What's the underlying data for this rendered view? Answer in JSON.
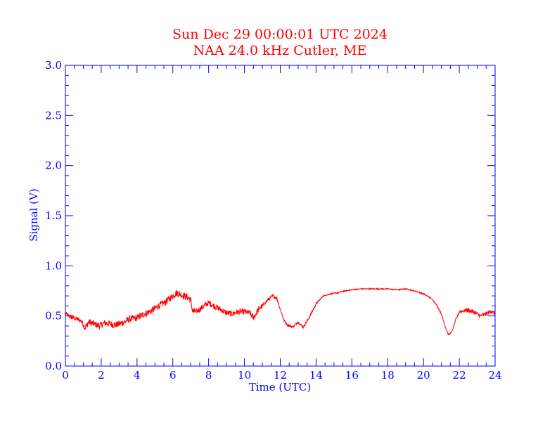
{
  "colors": {
    "axis": "#0000ff",
    "title": "#ff0000",
    "series": "#ff0000",
    "background": "#ffffff"
  },
  "chart_data": {
    "type": "line",
    "title": "Sun Dec 29 00:00:01 UTC 2024",
    "subtitle": "NAA 24.0 kHz Cutler, ME",
    "xlabel": "Time (UTC)",
    "ylabel": "Signal (V)",
    "xlim": [
      0,
      24
    ],
    "ylim": [
      0,
      3.0
    ],
    "xticks": [
      "0",
      "2",
      "4",
      "6",
      "8",
      "10",
      "12",
      "14",
      "16",
      "18",
      "20",
      "22",
      "24"
    ],
    "yticks": [
      "0.0",
      "0.5",
      "1.0",
      "1.5",
      "2.0",
      "2.5",
      "3.0"
    ],
    "grid": false,
    "series": [
      {
        "name": "NAA 24.0 kHz",
        "x": [
          0,
          0.3,
          0.6,
          0.9,
          1.1,
          1.3,
          1.6,
          1.9,
          2.2,
          2.5,
          2.8,
          3.0,
          3.3,
          3.6,
          4.0,
          4.4,
          4.8,
          5.2,
          5.6,
          6.0,
          6.2,
          6.5,
          6.8,
          7.0,
          7.1,
          7.3,
          7.6,
          7.8,
          8.0,
          8.3,
          8.6,
          9.0,
          9.3,
          9.6,
          10.0,
          10.3,
          10.5,
          10.8,
          11.0,
          11.3,
          11.6,
          11.8,
          12.0,
          12.2,
          12.4,
          12.7,
          13.0,
          13.1,
          13.3,
          13.6,
          14.0,
          14.4,
          14.8,
          15.2,
          15.6,
          16.0,
          16.5,
          17.0,
          17.5,
          18.0,
          18.5,
          19.0,
          19.5,
          20.0,
          20.4,
          20.7,
          21.0,
          21.2,
          21.4,
          21.6,
          21.8,
          22.0,
          22.4,
          22.8,
          23.2,
          23.5,
          23.8,
          24.0
        ],
        "values": [
          0.52,
          0.49,
          0.47,
          0.45,
          0.38,
          0.44,
          0.42,
          0.4,
          0.43,
          0.42,
          0.41,
          0.42,
          0.44,
          0.47,
          0.48,
          0.52,
          0.55,
          0.6,
          0.64,
          0.7,
          0.73,
          0.71,
          0.69,
          0.66,
          0.55,
          0.54,
          0.58,
          0.61,
          0.63,
          0.6,
          0.57,
          0.53,
          0.52,
          0.54,
          0.54,
          0.53,
          0.48,
          0.57,
          0.6,
          0.66,
          0.7,
          0.68,
          0.57,
          0.46,
          0.41,
          0.39,
          0.44,
          0.42,
          0.39,
          0.48,
          0.62,
          0.7,
          0.72,
          0.73,
          0.75,
          0.76,
          0.77,
          0.77,
          0.77,
          0.77,
          0.76,
          0.77,
          0.75,
          0.72,
          0.68,
          0.62,
          0.52,
          0.4,
          0.31,
          0.35,
          0.46,
          0.54,
          0.56,
          0.54,
          0.5,
          0.52,
          0.55,
          0.52
        ],
        "color": "#ff0000"
      }
    ]
  }
}
